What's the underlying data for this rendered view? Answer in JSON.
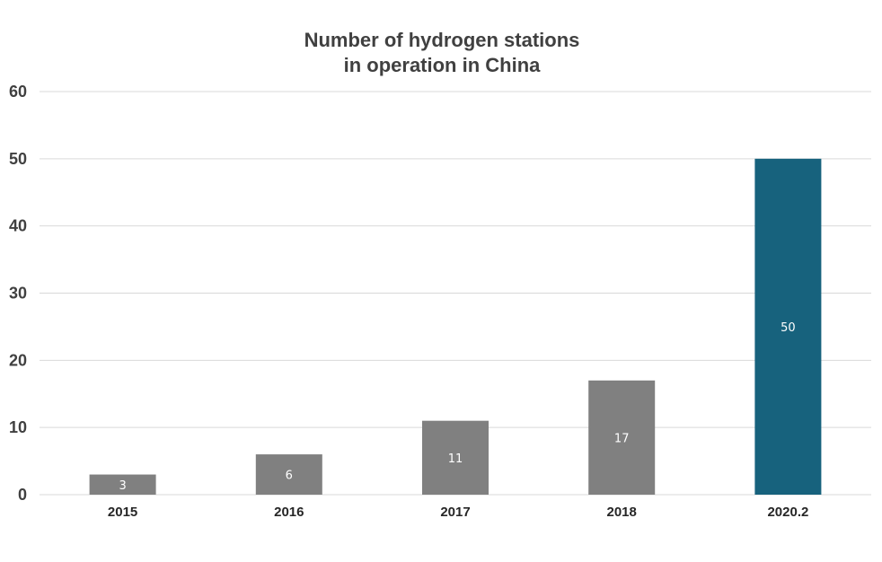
{
  "chart_data": {
    "type": "bar",
    "title": [
      "Number of hydrogen stations",
      "in operation in China"
    ],
    "categories": [
      "2015",
      "2016",
      "2017",
      "2018",
      "2020.2"
    ],
    "values": [
      3,
      6,
      11,
      17,
      50
    ],
    "data_labels": [
      "3",
      "6",
      "11",
      "17",
      "50"
    ],
    "ylim": [
      0,
      60
    ],
    "yticks": [
      0,
      10,
      20,
      30,
      40,
      50,
      60
    ],
    "ytick_labels": [
      "0",
      "10",
      "20",
      "30",
      "40",
      "50",
      "60"
    ],
    "xlabel": "",
    "ylabel": "",
    "grid": true,
    "legend": "none",
    "colors": {
      "default_bar": "#808080",
      "highlight_bar": "#17627d",
      "highlight_index": 4,
      "title": "#404040",
      "gridline": "#d9d9d9"
    }
  }
}
